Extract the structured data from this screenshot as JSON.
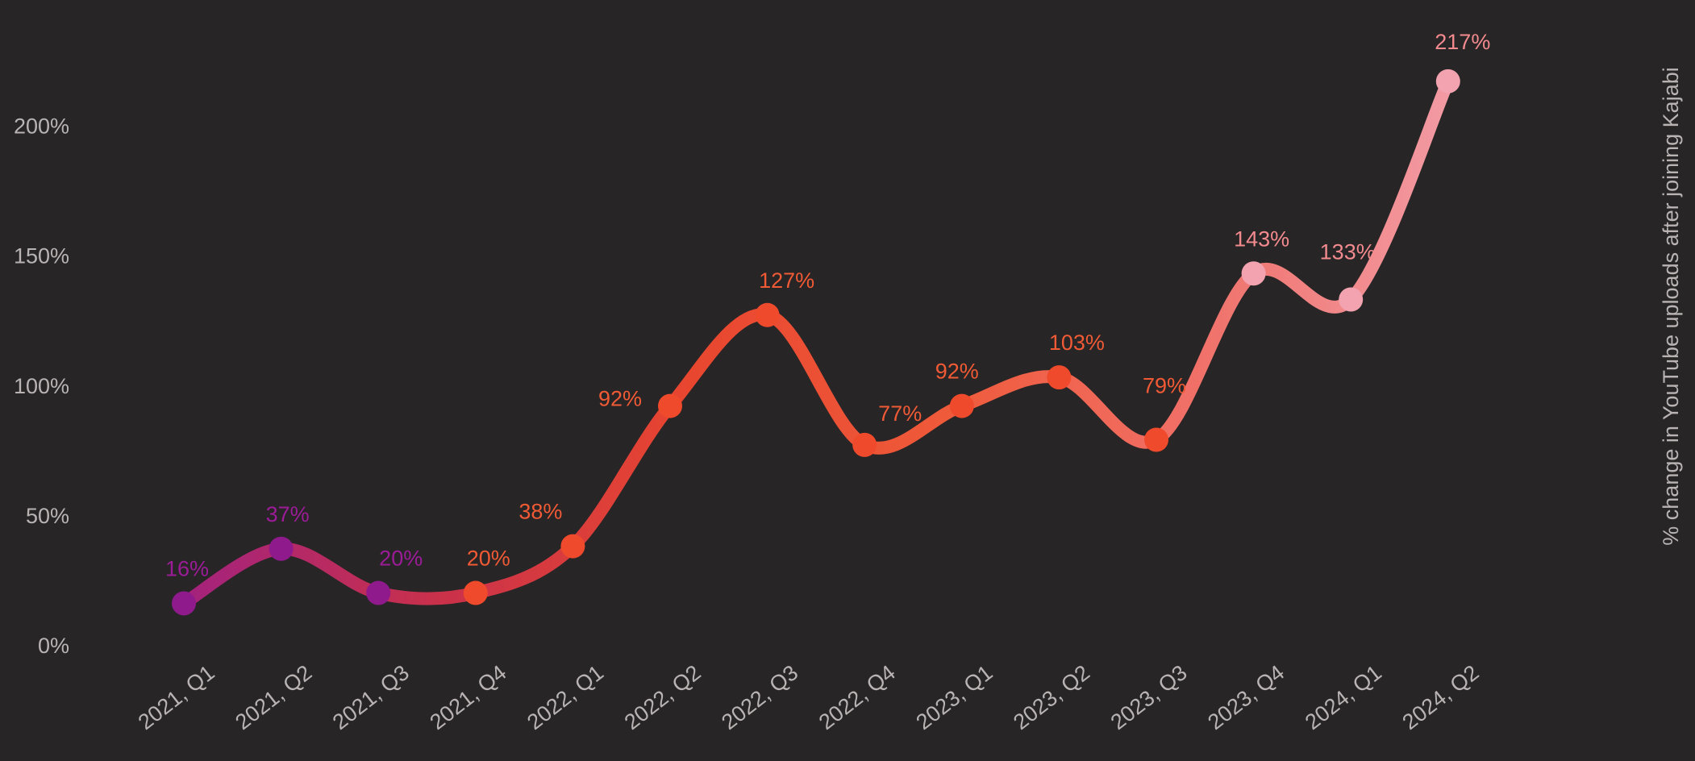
{
  "chart_data": {
    "type": "line",
    "title": "",
    "xlabel": "",
    "ylabel": "% change in YouTube uploads after joining Kajabi",
    "categories": [
      "2021, Q1",
      "2021, Q2",
      "2021, Q3",
      "2021, Q4",
      "2022, Q1",
      "2022, Q2",
      "2022, Q3",
      "2022, Q4",
      "2023, Q1",
      "2023, Q2",
      "2023, Q3",
      "2023, Q4",
      "2024, Q1",
      "2024, Q2"
    ],
    "series": [
      {
        "values": [
          16,
          37,
          20,
          20,
          38,
          92,
          127,
          77,
          92,
          103,
          79,
          143,
          133,
          217
        ],
        "value_labels": [
          "16%",
          "37%",
          "20%",
          "20%",
          "38%",
          "92%",
          "127%",
          "77%",
          "92%",
          "103%",
          "79%",
          "143%",
          "133%",
          "217%"
        ],
        "point_colors": [
          "#8e1a8c",
          "#8e1a8c",
          "#8e1a8c",
          "#ef4a2c",
          "#ef4a2c",
          "#ef4a2c",
          "#ef4a2c",
          "#ef4a2c",
          "#ef4a2c",
          "#ef4a2c",
          "#ef4a2c",
          "#f3a2b0",
          "#f3a2b0",
          "#f3a2b0"
        ],
        "label_colors": [
          "#9c1c98",
          "#9c1c98",
          "#9c1c98",
          "#f05a35",
          "#f05a35",
          "#f05a35",
          "#f05a35",
          "#f05a35",
          "#f05a35",
          "#f05a35",
          "#f05a35",
          "#f28a8e",
          "#f28a8e",
          "#f28a8e"
        ]
      }
    ],
    "yticks": [
      "0%",
      "50%",
      "100%",
      "150%",
      "200%"
    ],
    "ytick_values": [
      0,
      50,
      100,
      150,
      200
    ],
    "ylim": [
      0,
      220
    ],
    "grid": false,
    "legend": "none",
    "colors": {
      "background": "#272526",
      "axis_text": "#b9b3b4",
      "line_gradient": [
        "#a3227d",
        "#c9314b",
        "#e8462f",
        "#ef5a3a",
        "#f07068",
        "#f29aa3"
      ]
    }
  }
}
